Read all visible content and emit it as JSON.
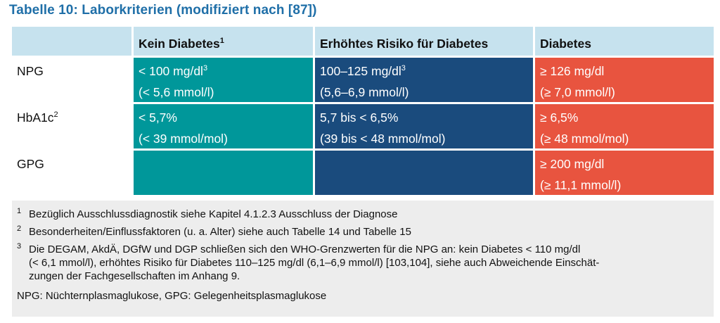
{
  "title": "Tabelle 10:  Laborkriterien (modifiziert nach [87])",
  "header": {
    "col0": "",
    "col1": "Kein Diabetes",
    "col1_sup": "1",
    "col2": "Erhöhtes Risiko für Diabetes",
    "col3": "Diabetes"
  },
  "rows": [
    {
      "label": "NPG",
      "label_sup": "",
      "kein": [
        "< 100 mg/dl",
        "(< 5,6 mmol/l)"
      ],
      "kein_sup": "3",
      "risiko": [
        "100–125 mg/dl",
        "(5,6–6,9 mmol/l)"
      ],
      "risiko_sup": "3",
      "diabetes": [
        "≥ 126 mg/dl",
        "(≥ 7,0 mmol/l)"
      ]
    },
    {
      "label": "HbA1c",
      "label_sup": "2",
      "kein": [
        "< 5,7%",
        "(< 39 mmol/mol)"
      ],
      "risiko": [
        "5,7 bis < 6,5%",
        "(39 bis < 48 mmol/mol)"
      ],
      "diabetes": [
        "≥ 6,5%",
        "(≥ 48 mmol/mol)"
      ]
    },
    {
      "label": "GPG",
      "label_sup": "",
      "kein": [
        "",
        ""
      ],
      "risiko": [
        "",
        ""
      ],
      "diabetes": [
        "≥ 200 mg/dl",
        "(≥ 11,1 mmol/l)"
      ]
    }
  ],
  "footnotes": [
    {
      "num": "1",
      "text": "Bezüglich Ausschlussdiagnostik siehe Kapitel 4.1.2.3 Ausschluss der Diagnose"
    },
    {
      "num": "2",
      "text": "Besonderheiten/Einflussfaktoren (u. a. Alter) siehe auch Tabelle 14 und Tabelle 15"
    },
    {
      "num": "3",
      "lines": [
        "Die DEGAM, AkdÄ, DGfW und DGP schließen sich den WHO-Grenzwerten für die NPG an: kein Diabetes < 110 mg/dl",
        "(< 6,1 mmol/l), erhöhtes Risiko für Diabetes 110–125 mg/dl (6,1–6,9 mmol/l) [103,104], siehe auch Abweichende Einschät-",
        "zungen der Fachgesellschaften im Anhang 9."
      ]
    }
  ],
  "abbreviations": "NPG: Nüchternplasmaglukose, GPG: Gelegenheitsplasmaglukose",
  "colors": {
    "title": "#1f6fa8",
    "header_bg": "#c6e2ee",
    "kein_diabetes": "#00979a",
    "erhoehtes_risiko": "#1a4b7d",
    "diabetes": "#e8543f",
    "notes_bg": "#ededed"
  }
}
